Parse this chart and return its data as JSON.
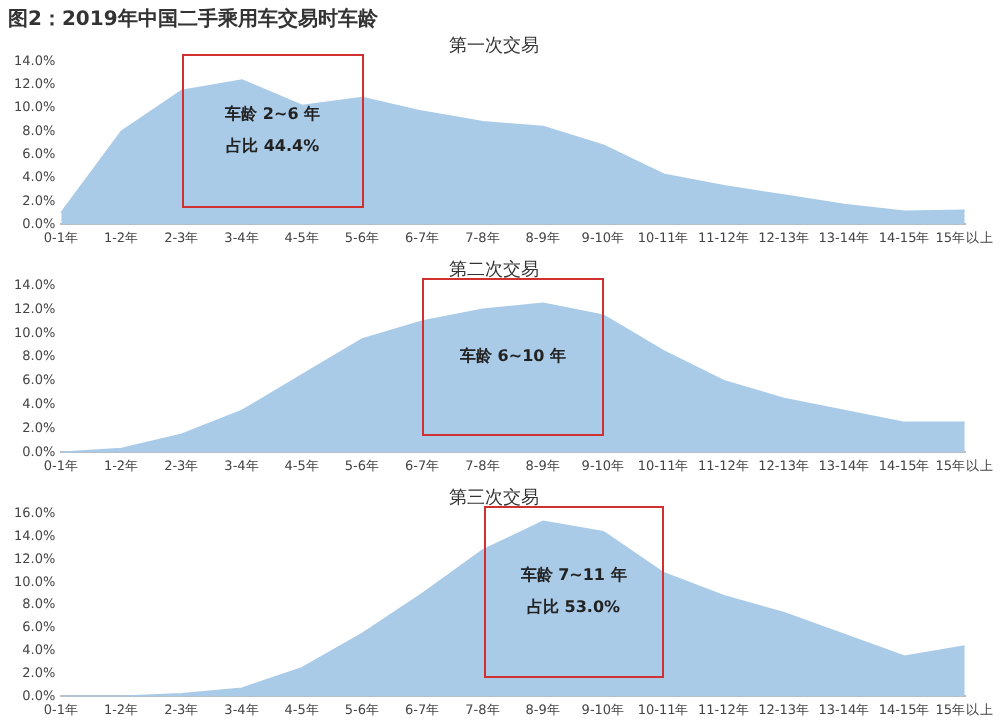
{
  "chart_data": [
    {
      "type": "area",
      "title": "图2：2019年中国二手乘用车交易时车龄",
      "subtitle": "第一次交易",
      "categories": [
        "0-1年",
        "1-2年",
        "2-3年",
        "3-4年",
        "4-5年",
        "5-6年",
        "6-7年",
        "7-8年",
        "8-9年",
        "9-10年",
        "10-11年",
        "11-12年",
        "12-13年",
        "13-14年",
        "14-15年",
        "15年以上"
      ],
      "series": [
        {
          "color": "#a9cbe8",
          "values": [
            1.0,
            8.0,
            11.5,
            12.4,
            10.2,
            10.9,
            9.7,
            8.8,
            8.4,
            6.8,
            4.3,
            3.3,
            2.5,
            1.7,
            1.1,
            1.2
          ]
        }
      ],
      "ylim": [
        0,
        14
      ],
      "yticks": [
        {
          "value": 0,
          "label": "0.0%"
        },
        {
          "value": 2,
          "label": "2.0%"
        },
        {
          "value": 4,
          "label": "4.0%"
        },
        {
          "value": 6,
          "label": "6.0%"
        },
        {
          "value": 8,
          "label": "8.0%"
        },
        {
          "value": 10,
          "label": "10.0%"
        },
        {
          "value": 12,
          "label": "12.0%"
        },
        {
          "value": 14,
          "label": "14.0%"
        }
      ],
      "annotations": [
        "车龄 2~6 年",
        "占比 44.4%"
      ],
      "grid": false,
      "legend": false
    },
    {
      "type": "area",
      "title": "第二次交易",
      "categories": [
        "0-1年",
        "1-2年",
        "2-3年",
        "3-4年",
        "4-5年",
        "5-6年",
        "6-7年",
        "7-8年",
        "8-9年",
        "9-10年",
        "10-11年",
        "11-12年",
        "12-13年",
        "13-14年",
        "14-15年",
        "15年以上"
      ],
      "series": [
        {
          "color": "#a9cbe8",
          "values": [
            0,
            0.3,
            1.5,
            3.5,
            6.5,
            9.5,
            11.0,
            12.0,
            12.5,
            11.5,
            8.5,
            6.0,
            4.5,
            3.5,
            2.5,
            2.5
          ]
        }
      ],
      "ylim": [
        0,
        14
      ],
      "yticks": [
        {
          "value": 0,
          "label": "0.0%"
        },
        {
          "value": 2,
          "label": "2.0%"
        },
        {
          "value": 4,
          "label": "4.0%"
        },
        {
          "value": 6,
          "label": "6.0%"
        },
        {
          "value": 8,
          "label": "8.0%"
        },
        {
          "value": 10,
          "label": "10.0%"
        },
        {
          "value": 12,
          "label": "12.0%"
        },
        {
          "value": 14,
          "label": "14.0%"
        }
      ],
      "annotations": [
        "车龄 6~10 年"
      ],
      "grid": false,
      "legend": false
    },
    {
      "type": "area",
      "title": "第三次交易",
      "categories": [
        "0-1年",
        "1-2年",
        "2-3年",
        "3-4年",
        "4-5年",
        "5-6年",
        "6-7年",
        "7-8年",
        "8-9年",
        "9-10年",
        "10-11年",
        "11-12年",
        "12-13年",
        "13-14年",
        "14-15年",
        "15年以上"
      ],
      "series": [
        {
          "color": "#a9cbe8",
          "values": [
            0,
            0,
            0.2,
            0.7,
            2.5,
            5.5,
            9.0,
            12.8,
            15.3,
            14.4,
            10.8,
            8.8,
            7.3,
            5.4,
            3.5,
            4.4
          ]
        }
      ],
      "ylim": [
        0,
        16
      ],
      "yticks": [
        {
          "value": 0,
          "label": "0.0%"
        },
        {
          "value": 2,
          "label": "2.0%"
        },
        {
          "value": 4,
          "label": "4.0%"
        },
        {
          "value": 6,
          "label": "6.0%"
        },
        {
          "value": 8,
          "label": "8.0%"
        },
        {
          "value": 10,
          "label": "10.0%"
        },
        {
          "value": 12,
          "label": "12.0%"
        },
        {
          "value": 14,
          "label": "14.0%"
        },
        {
          "value": 16,
          "label": "16.0%"
        }
      ],
      "annotations": [
        "车龄 7~11 年",
        "占比 53.0%"
      ],
      "grid": false,
      "legend": false
    }
  ]
}
